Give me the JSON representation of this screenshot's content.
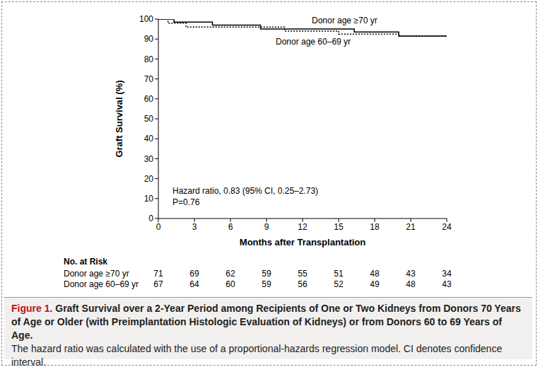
{
  "chart_data": {
    "type": "line",
    "title": "",
    "x_label": "Months after Transplantation",
    "y_label": "Graft Survival (%)",
    "x": [
      0,
      0.8,
      1.3,
      2.3,
      4.5,
      8.5,
      10.5,
      15,
      16.3,
      20,
      24
    ],
    "series": [
      {
        "name": "Donor age ≥70 yr",
        "color": "#000000",
        "line_style": "solid",
        "values": [
          100,
          100,
          98.5,
          98.5,
          97,
          95,
          95,
          95,
          93.5,
          91.5,
          91.5
        ]
      },
      {
        "name": "Donor age 60–69 yr",
        "color": "#000000",
        "line_style": "dotted",
        "values": [
          100,
          98,
          98,
          96,
          96,
          96,
          94,
          92.5,
          92.5,
          91.5,
          91.5
        ]
      }
    ],
    "xlim": [
      0,
      24
    ],
    "xticks": [
      0,
      3,
      6,
      9,
      12,
      15,
      18,
      21,
      24
    ],
    "ylim": [
      0,
      100
    ],
    "yticks": [
      0,
      10,
      20,
      30,
      40,
      50,
      60,
      70,
      80,
      90,
      100
    ],
    "grid": false,
    "annotations": [
      "Hazard ratio, 0.83 (95% CI, 0.25–2.73)",
      "P=0.76"
    ],
    "at_risk": {
      "title": "No. at Risk",
      "rows": [
        {
          "name": "Donor age ≥70 yr",
          "values": [
            71,
            69,
            62,
            59,
            55,
            51,
            48,
            43,
            34
          ]
        },
        {
          "name": "Donor age 60–69 yr",
          "values": [
            67,
            64,
            60,
            59,
            56,
            52,
            49,
            48,
            43
          ]
        }
      ]
    },
    "caption": {
      "label": "Figure 1.",
      "title": "Graft Survival over a 2-Year Period among Recipients of One or Two Kidneys from Donors 70 Years of Age or Older (with Preimplantation Histologic Evaluation of Kidneys) or from Donors 60 to 69 Years of Age.",
      "text": "The hazard ratio was calculated with the use of a proportional-hazards regression model. CI denotes confidence interval."
    }
  }
}
